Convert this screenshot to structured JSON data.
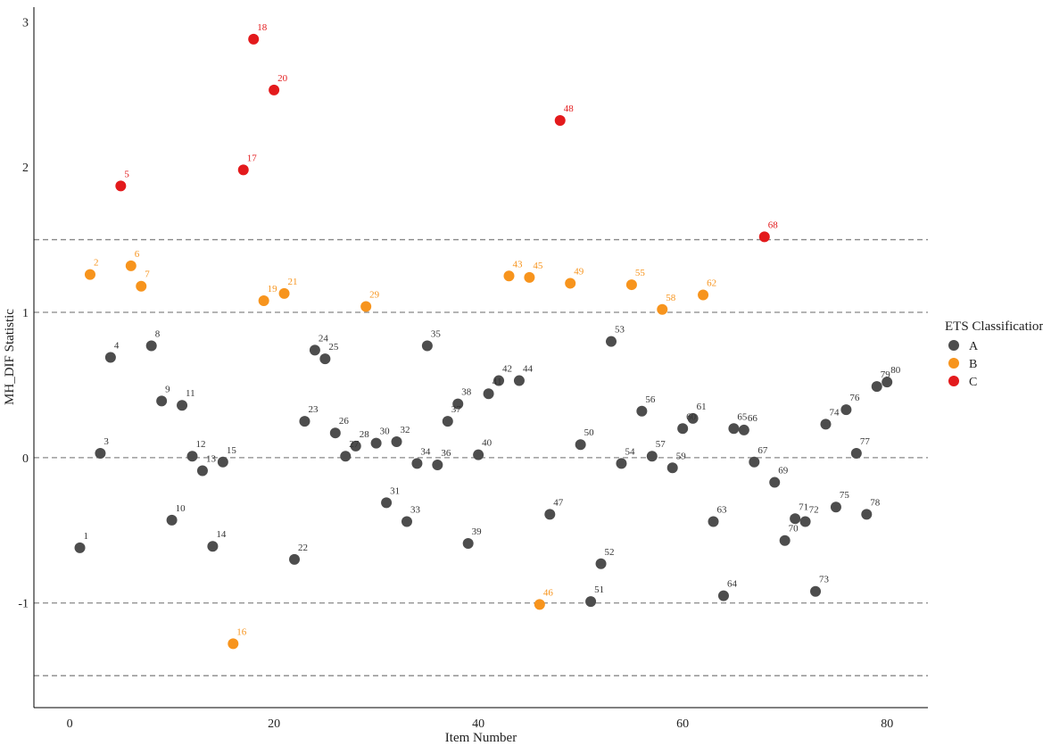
{
  "chart_data": {
    "type": "scatter",
    "xlabel": "Item Number",
    "ylabel": "MH_DIF Statistic",
    "xlim": [
      -3.5,
      84
    ],
    "ylim": [
      -1.72,
      3.1
    ],
    "x_ticks": [
      0,
      20,
      40,
      60,
      80
    ],
    "y_ticks": [
      -1,
      0,
      1,
      2,
      3
    ],
    "reference_lines": [
      -1.5,
      -1,
      0,
      1,
      1.5
    ],
    "grid": false,
    "legend": {
      "title": "ETS Classification",
      "placement": "right",
      "entries": [
        "A",
        "B",
        "C"
      ]
    },
    "colors": {
      "A": "#4d4d4d",
      "B": "#f7941d",
      "C": "#e31a1c"
    },
    "points": [
      {
        "item": 1,
        "value": -0.62,
        "class": "A"
      },
      {
        "item": 2,
        "value": 1.26,
        "class": "B"
      },
      {
        "item": 3,
        "value": 0.03,
        "class": "A"
      },
      {
        "item": 4,
        "value": 0.69,
        "class": "A"
      },
      {
        "item": 5,
        "value": 1.87,
        "class": "C"
      },
      {
        "item": 6,
        "value": 1.32,
        "class": "B"
      },
      {
        "item": 7,
        "value": 1.18,
        "class": "B"
      },
      {
        "item": 8,
        "value": 0.77,
        "class": "A"
      },
      {
        "item": 9,
        "value": 0.39,
        "class": "A"
      },
      {
        "item": 10,
        "value": -0.43,
        "class": "A"
      },
      {
        "item": 11,
        "value": 0.36,
        "class": "A"
      },
      {
        "item": 12,
        "value": 0.01,
        "class": "A"
      },
      {
        "item": 13,
        "value": -0.09,
        "class": "A"
      },
      {
        "item": 14,
        "value": -0.61,
        "class": "A"
      },
      {
        "item": 15,
        "value": -0.03,
        "class": "A"
      },
      {
        "item": 16,
        "value": -1.28,
        "class": "B"
      },
      {
        "item": 17,
        "value": 1.98,
        "class": "C"
      },
      {
        "item": 18,
        "value": 2.88,
        "class": "C"
      },
      {
        "item": 19,
        "value": 1.08,
        "class": "B"
      },
      {
        "item": 20,
        "value": 2.53,
        "class": "C"
      },
      {
        "item": 21,
        "value": 1.13,
        "class": "B"
      },
      {
        "item": 22,
        "value": -0.7,
        "class": "A"
      },
      {
        "item": 23,
        "value": 0.25,
        "class": "A"
      },
      {
        "item": 24,
        "value": 0.74,
        "class": "A"
      },
      {
        "item": 25,
        "value": 0.68,
        "class": "A"
      },
      {
        "item": 26,
        "value": 0.17,
        "class": "A"
      },
      {
        "item": 27,
        "value": 0.01,
        "class": "A"
      },
      {
        "item": 28,
        "value": 0.08,
        "class": "A"
      },
      {
        "item": 29,
        "value": 1.04,
        "class": "B"
      },
      {
        "item": 30,
        "value": 0.1,
        "class": "A"
      },
      {
        "item": 31,
        "value": -0.31,
        "class": "A"
      },
      {
        "item": 32,
        "value": 0.11,
        "class": "A"
      },
      {
        "item": 33,
        "value": -0.44,
        "class": "A"
      },
      {
        "item": 34,
        "value": -0.04,
        "class": "A"
      },
      {
        "item": 35,
        "value": 0.77,
        "class": "A"
      },
      {
        "item": 36,
        "value": -0.05,
        "class": "A"
      },
      {
        "item": 37,
        "value": 0.25,
        "class": "A"
      },
      {
        "item": 38,
        "value": 0.37,
        "class": "A"
      },
      {
        "item": 39,
        "value": -0.59,
        "class": "A"
      },
      {
        "item": 40,
        "value": 0.02,
        "class": "A"
      },
      {
        "item": 41,
        "value": 0.44,
        "class": "A"
      },
      {
        "item": 42,
        "value": 0.53,
        "class": "A"
      },
      {
        "item": 43,
        "value": 1.25,
        "class": "B"
      },
      {
        "item": 44,
        "value": 0.53,
        "class": "A"
      },
      {
        "item": 45,
        "value": 1.24,
        "class": "B"
      },
      {
        "item": 46,
        "value": -1.01,
        "class": "B"
      },
      {
        "item": 47,
        "value": -0.39,
        "class": "A"
      },
      {
        "item": 48,
        "value": 2.32,
        "class": "C"
      },
      {
        "item": 49,
        "value": 1.2,
        "class": "B"
      },
      {
        "item": 50,
        "value": 0.09,
        "class": "A"
      },
      {
        "item": 51,
        "value": -0.99,
        "class": "A"
      },
      {
        "item": 52,
        "value": -0.73,
        "class": "A"
      },
      {
        "item": 53,
        "value": 0.8,
        "class": "A"
      },
      {
        "item": 54,
        "value": -0.04,
        "class": "A"
      },
      {
        "item": 55,
        "value": 1.19,
        "class": "B"
      },
      {
        "item": 56,
        "value": 0.32,
        "class": "A"
      },
      {
        "item": 57,
        "value": 0.01,
        "class": "A"
      },
      {
        "item": 58,
        "value": 1.02,
        "class": "B"
      },
      {
        "item": 59,
        "value": -0.07,
        "class": "A"
      },
      {
        "item": 60,
        "value": 0.2,
        "class": "A"
      },
      {
        "item": 61,
        "value": 0.27,
        "class": "A"
      },
      {
        "item": 62,
        "value": 1.12,
        "class": "B"
      },
      {
        "item": 63,
        "value": -0.44,
        "class": "A"
      },
      {
        "item": 64,
        "value": -0.95,
        "class": "A"
      },
      {
        "item": 65,
        "value": 0.2,
        "class": "A"
      },
      {
        "item": 66,
        "value": 0.19,
        "class": "A"
      },
      {
        "item": 67,
        "value": -0.03,
        "class": "A"
      },
      {
        "item": 68,
        "value": 1.52,
        "class": "C"
      },
      {
        "item": 69,
        "value": -0.17,
        "class": "A"
      },
      {
        "item": 70,
        "value": -0.57,
        "class": "A"
      },
      {
        "item": 71,
        "value": -0.42,
        "class": "A"
      },
      {
        "item": 72,
        "value": -0.44,
        "class": "A"
      },
      {
        "item": 73,
        "value": -0.92,
        "class": "A"
      },
      {
        "item": 74,
        "value": 0.23,
        "class": "A"
      },
      {
        "item": 75,
        "value": -0.34,
        "class": "A"
      },
      {
        "item": 76,
        "value": 0.33,
        "class": "A"
      },
      {
        "item": 77,
        "value": 0.03,
        "class": "A"
      },
      {
        "item": 78,
        "value": -0.39,
        "class": "A"
      },
      {
        "item": 79,
        "value": 0.49,
        "class": "A"
      },
      {
        "item": 80,
        "value": 0.52,
        "class": "A"
      }
    ]
  }
}
